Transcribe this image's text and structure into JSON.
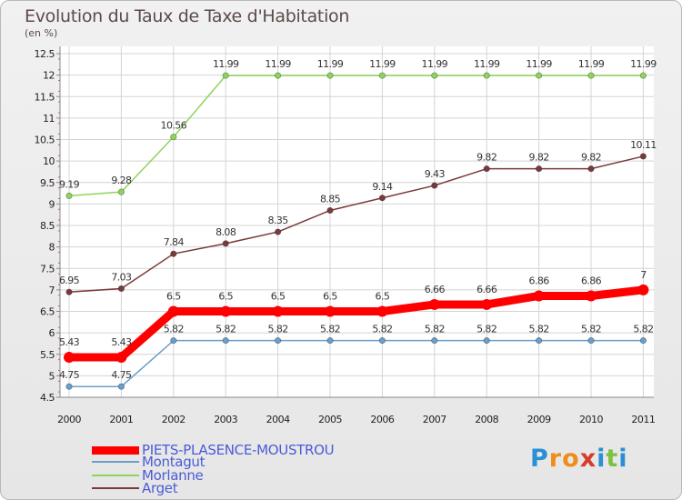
{
  "title": "Evolution du Taux de Taxe d'Habitation",
  "subtitle": "(en %)",
  "logo": {
    "letters": [
      "P",
      "r",
      "o",
      "x",
      "i",
      "t",
      "i"
    ],
    "colors": [
      "#2b8fd6",
      "#f08c1a",
      "#f08c1a",
      "#d63b2b",
      "#2b8fd6",
      "#7cc142",
      "#2b8fd6"
    ]
  },
  "chart_data": {
    "type": "line",
    "x": [
      "2000",
      "2001",
      "2002",
      "2003",
      "2004",
      "2005",
      "2006",
      "2007",
      "2008",
      "2009",
      "2010",
      "2011"
    ],
    "ylim": [
      4.5,
      12.5
    ],
    "yticks": [
      "4.5",
      "5",
      "5.5",
      "6",
      "6.5",
      "7",
      "7.5",
      "8",
      "8.5",
      "9",
      "9.5",
      "10",
      "10.5",
      "11",
      "11.5",
      "12",
      "12.5"
    ],
    "grid": true,
    "legend_position": "bottom-left",
    "series": [
      {
        "name": "PIETS-PLASENCE-MOUSTROU",
        "color": "#ff0000",
        "values": [
          5.43,
          5.43,
          6.5,
          6.5,
          6.5,
          6.5,
          6.5,
          6.66,
          6.66,
          6.86,
          6.86,
          7
        ],
        "labels": [
          "5.43",
          "5.43",
          "6.5",
          "6.5",
          "6.5",
          "6.5",
          "6.5",
          "6.66",
          "6.66",
          "6.86",
          "6.86",
          "7"
        ]
      },
      {
        "name": "Montagut",
        "color": "#6a9fcb",
        "values": [
          4.75,
          4.75,
          5.82,
          5.82,
          5.82,
          5.82,
          5.82,
          5.82,
          5.82,
          5.82,
          5.82,
          5.82
        ],
        "labels": [
          "4.75",
          "4.75",
          "5.82",
          "5.82",
          "5.82",
          "5.82",
          "5.82",
          "5.82",
          "5.82",
          "5.82",
          "5.82",
          "5.82"
        ]
      },
      {
        "name": "Morlanne",
        "color": "#8fd45a",
        "values": [
          9.19,
          9.28,
          10.56,
          11.99,
          11.99,
          11.99,
          11.99,
          11.99,
          11.99,
          11.99,
          11.99,
          11.99
        ],
        "labels": [
          "9.19",
          "9.28",
          "10.56",
          "11.99",
          "11.99",
          "11.99",
          "11.99",
          "11.99",
          "11.99",
          "11.99",
          "11.99",
          "11.99"
        ]
      },
      {
        "name": "Arget",
        "color": "#7a3a3a",
        "values": [
          6.95,
          7.03,
          7.84,
          8.08,
          8.35,
          8.85,
          9.14,
          9.43,
          9.82,
          9.82,
          9.82,
          10.11
        ],
        "labels": [
          "6.95",
          "7.03",
          "7.84",
          "8.08",
          "8.35",
          "8.85",
          "9.14",
          "9.43",
          "9.82",
          "9.82",
          "9.82",
          "10.11"
        ]
      }
    ]
  },
  "legend": [
    {
      "label": "PIETS-PLASENCE-MOUSTROU",
      "swatch_color": "#ff0000",
      "text_color": "#4b5bd6"
    },
    {
      "label": "Montagut",
      "swatch_color": "#6a9fcb",
      "text_color": "#4b5bd6"
    },
    {
      "label": "Morlanne",
      "swatch_color": "#8fd45a",
      "text_color": "#4b5bd6"
    },
    {
      "label": "Arget",
      "swatch_color": "#7a3a3a",
      "text_color": "#4b5bd6"
    }
  ]
}
